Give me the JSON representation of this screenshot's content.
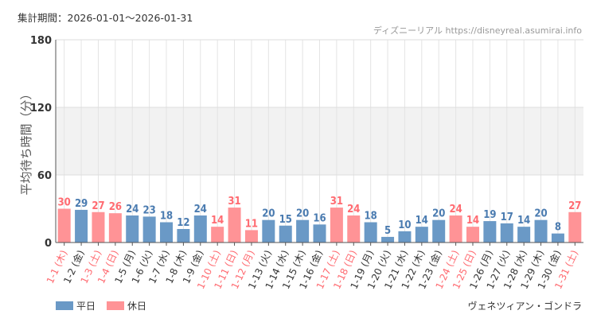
{
  "header": {
    "period": "集計期間：2026-01-01～2026-01-31",
    "credit": "ディズニーリアル https://disneyreal.asumirai.info"
  },
  "footer": {
    "attraction": "ヴェネツィアン・ゴンドラ"
  },
  "colors": {
    "weekday": "#6a99c6",
    "holiday": "#ff9396",
    "weekday_text": "#4a7bb0",
    "holiday_text": "#ff6a70",
    "band": "#f2f2f2"
  },
  "chart_data": {
    "type": "bar",
    "ylabel": "平均待ち時間（分）",
    "ylim": [
      0,
      180
    ],
    "yticks": [
      "0",
      "60",
      "120",
      "180"
    ],
    "grid": true,
    "shaded_band": [
      60,
      120
    ],
    "legend": {
      "placement": "bottom-left",
      "entries": [
        "平日",
        "休日"
      ]
    },
    "categories": [
      "1-1 (木)",
      "1-2 (金)",
      "1-3 (土)",
      "1-4 (日)",
      "1-5 (月)",
      "1-6 (火)",
      "1-7 (水)",
      "1-8 (木)",
      "1-9 (金)",
      "1-10 (土)",
      "1-11 (日)",
      "1-12 (月)",
      "1-13 (火)",
      "1-14 (水)",
      "1-15 (木)",
      "1-16 (金)",
      "1-17 (土)",
      "1-18 (日)",
      "1-19 (月)",
      "1-20 (火)",
      "1-21 (水)",
      "1-22 (木)",
      "1-23 (金)",
      "1-24 (土)",
      "1-25 (日)",
      "1-26 (月)",
      "1-27 (火)",
      "1-28 (水)",
      "1-29 (木)",
      "1-30 (金)",
      "1-31 (土)"
    ],
    "values": [
      30,
      29,
      27,
      26,
      24,
      23,
      18,
      12,
      24,
      14,
      31,
      11,
      20,
      15,
      20,
      16,
      31,
      24,
      18,
      5,
      10,
      14,
      20,
      24,
      14,
      19,
      17,
      14,
      20,
      8,
      27
    ],
    "holiday": [
      true,
      false,
      true,
      true,
      false,
      false,
      false,
      false,
      false,
      true,
      true,
      true,
      false,
      false,
      false,
      false,
      true,
      true,
      false,
      false,
      false,
      false,
      false,
      true,
      true,
      false,
      false,
      false,
      false,
      false,
      true
    ]
  }
}
